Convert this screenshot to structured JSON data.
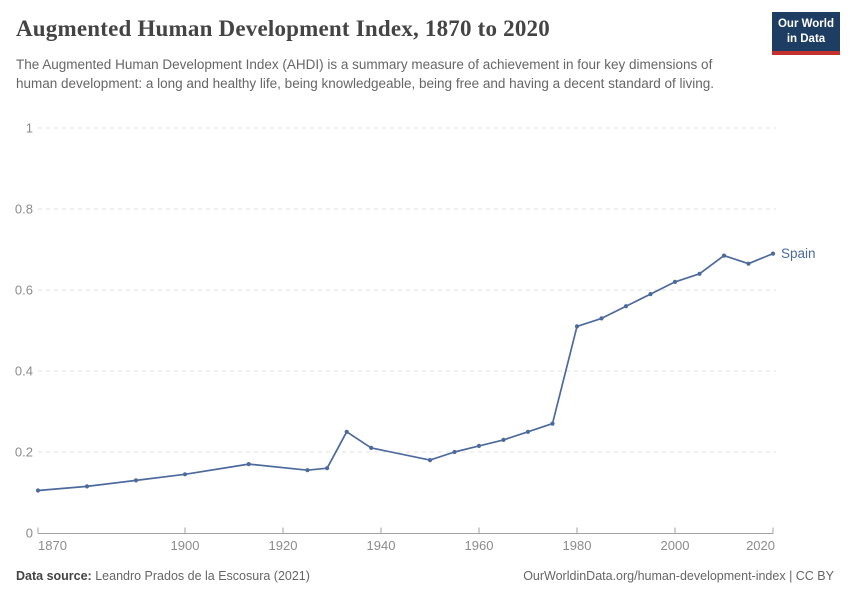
{
  "header": {
    "title": "Augmented Human Development Index, 1870 to 2020",
    "subtitle": "The Augmented Human Development Index (AHDI) is a summary measure of achievement in four key dimensions of human development: a long and healthy life, being knowledgeable, being free and having a decent standard of living.",
    "logo": {
      "line1": "Our World",
      "line2": "in Data"
    }
  },
  "chart_data": {
    "type": "line",
    "title": "Augmented Human Development Index, 1870 to 2020",
    "xlabel": "",
    "ylabel": "",
    "xlim": [
      1870,
      2020
    ],
    "ylim": [
      0,
      1
    ],
    "x_ticks": [
      1870,
      1900,
      1920,
      1940,
      1960,
      1980,
      2000,
      2020
    ],
    "y_ticks": [
      0,
      0.2,
      0.4,
      0.6,
      0.8,
      1
    ],
    "grid": "horizontal-dashed",
    "legend_position": "end-of-line-label",
    "series": [
      {
        "name": "Spain",
        "color": "#4c6a9c",
        "x": [
          1870,
          1880,
          1890,
          1900,
          1913,
          1925,
          1929,
          1933,
          1938,
          1950,
          1955,
          1960,
          1965,
          1970,
          1975,
          1980,
          1985,
          1990,
          1995,
          2000,
          2005,
          2010,
          2015,
          2020
        ],
        "values": [
          0.105,
          0.115,
          0.13,
          0.145,
          0.17,
          0.155,
          0.16,
          0.25,
          0.21,
          0.18,
          0.2,
          0.215,
          0.23,
          0.25,
          0.27,
          0.51,
          0.53,
          0.56,
          0.59,
          0.62,
          0.64,
          0.685,
          0.665,
          0.69
        ]
      }
    ]
  },
  "footer": {
    "source_label": "Data source:",
    "source_text": " Leandro Prados de la Escosura (2021)",
    "link_text": "OurWorldinData.org/human-development-index | CC BY"
  },
  "colors": {
    "accent_line": "#4c6a9c",
    "logo_bg": "#1d3d63",
    "logo_stripe": "#c5312d",
    "grid": "#e0e0e0",
    "axis": "#a3a3a3",
    "axis_label": "#8c8c8c"
  }
}
